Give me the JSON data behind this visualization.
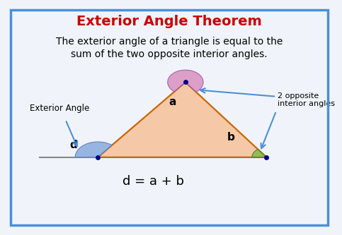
{
  "title": "Exterior Angle Theorem",
  "title_color": "#cc0000",
  "title_fontsize": 14,
  "description_line1": "The exterior angle of a triangle is equal to the",
  "description_line2": "sum of the two opposite interior angles.",
  "desc_fontsize": 10,
  "formula": "d = a + b",
  "formula_fontsize": 13,
  "border_color": "#4a90d9",
  "background_color": "#f0f4fa",
  "triangle_fill": "#f5c8a8",
  "triangle_edge_color": "#cc6600",
  "triangle_edge_width": 1.6,
  "angle_a_color": "#d890c0",
  "angle_b_color": "#80bb50",
  "angle_d_color": "#88aadd",
  "label_a": "a",
  "label_b": "b",
  "label_d": "d",
  "label_exterior": "Exterior Angle",
  "label_opposite": "2 opposite\ninterior angles",
  "dot_color": "#000088",
  "dot_size": 5,
  "arrow_color": "#4a90d9"
}
